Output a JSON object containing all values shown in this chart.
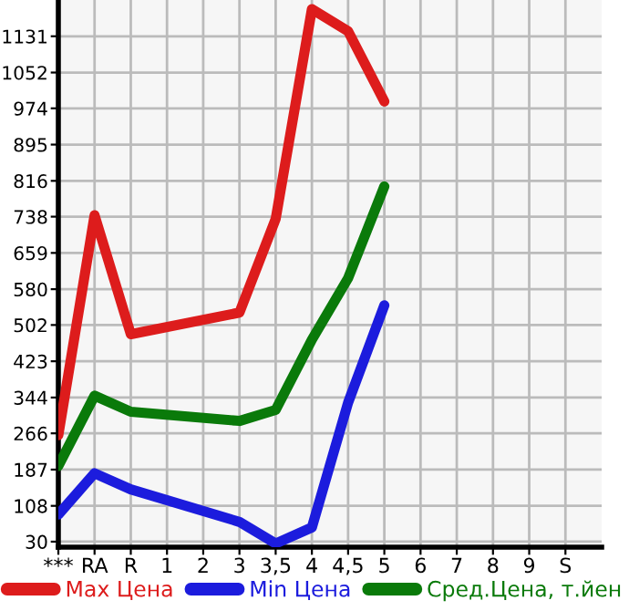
{
  "chart_data": {
    "type": "line",
    "categories": [
      "***",
      "RA",
      "R",
      "1",
      "2",
      "3",
      "3,5",
      "4",
      "4,5",
      "5",
      "6",
      "7",
      "8",
      "9",
      "S"
    ],
    "series": [
      {
        "name": "Max Цена",
        "color": "#dd1c1c",
        "values": [
          262,
          741,
          482,
          null,
          null,
          529,
          733,
          1190,
          1142,
          989,
          null,
          null,
          null,
          null,
          null
        ]
      },
      {
        "name": "Min Цена",
        "color": "#1c1cdd",
        "values": [
          89,
          179,
          144,
          null,
          null,
          73,
          26,
          61,
          333,
          545,
          null,
          null,
          null,
          null,
          null
        ]
      },
      {
        "name": "Сред.Цена, т.йен",
        "color": "#0a7a0a",
        "values": [
          195,
          348,
          313,
          null,
          null,
          293,
          317,
          470,
          604,
          804,
          null,
          null,
          null,
          null,
          null
        ]
      }
    ],
    "ylim": [
      18,
      1210
    ],
    "yticks": [
      30,
      108,
      187,
      266,
      344,
      423,
      502,
      580,
      659,
      738,
      816,
      895,
      974,
      1052,
      1131
    ],
    "grid": true,
    "legend": "bottom",
    "marker": "none",
    "line_style": "solid"
  }
}
